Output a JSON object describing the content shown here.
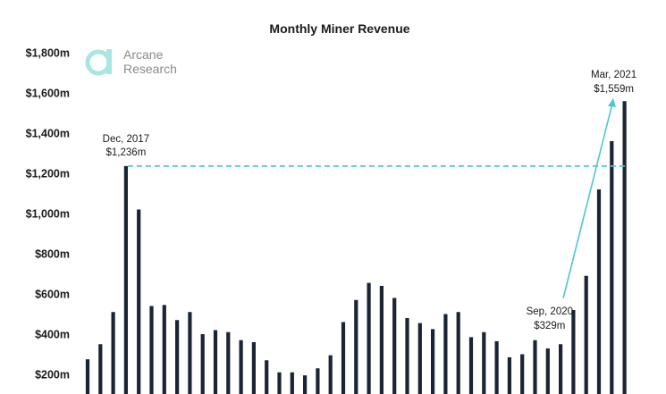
{
  "chart_data": {
    "type": "bar",
    "title": "Monthly Miner Revenue",
    "xlabel": "",
    "ylabel": "",
    "unit": "$m",
    "ylim": [
      200,
      1800
    ],
    "yticks": [
      "$200m",
      "$400m",
      "$600m",
      "$800m",
      "$1,000m",
      "$1,200m",
      "$1,400m",
      "$1,600m",
      "$1,800m"
    ],
    "ytick_values": [
      200,
      400,
      600,
      800,
      1000,
      1200,
      1400,
      1600,
      1800
    ],
    "grid": false,
    "values": [
      275,
      350,
      510,
      1236,
      1020,
      540,
      545,
      470,
      510,
      400,
      420,
      410,
      370,
      360,
      270,
      210,
      210,
      195,
      230,
      295,
      460,
      570,
      655,
      640,
      580,
      480,
      455,
      425,
      500,
      510,
      385,
      410,
      365,
      285,
      300,
      370,
      329,
      350,
      520,
      690,
      1120,
      1360,
      1559
    ],
    "annotations": [
      {
        "bar_index": 3,
        "line1": "Dec, 2017",
        "line2": "$1,236m"
      },
      {
        "bar_index": 36,
        "line1": "Sep, 2020",
        "line2": "$329m"
      },
      {
        "bar_index": 42,
        "line1": "Mar, 2021",
        "line2": "$1,559m"
      }
    ],
    "reference_line": {
      "value": 1236,
      "style": "dashed",
      "color": "#4ec7d4"
    },
    "arrow": {
      "from_value": 600,
      "to_value": 1565,
      "color": "#4ec7d4"
    },
    "colors": {
      "bars": "#1b2433",
      "accent": "#4ec7d4"
    }
  },
  "logo": {
    "line1": "Arcane",
    "line2": "Research",
    "icon": "arcane-a-logo-icon",
    "color": "#a8e6e1"
  }
}
